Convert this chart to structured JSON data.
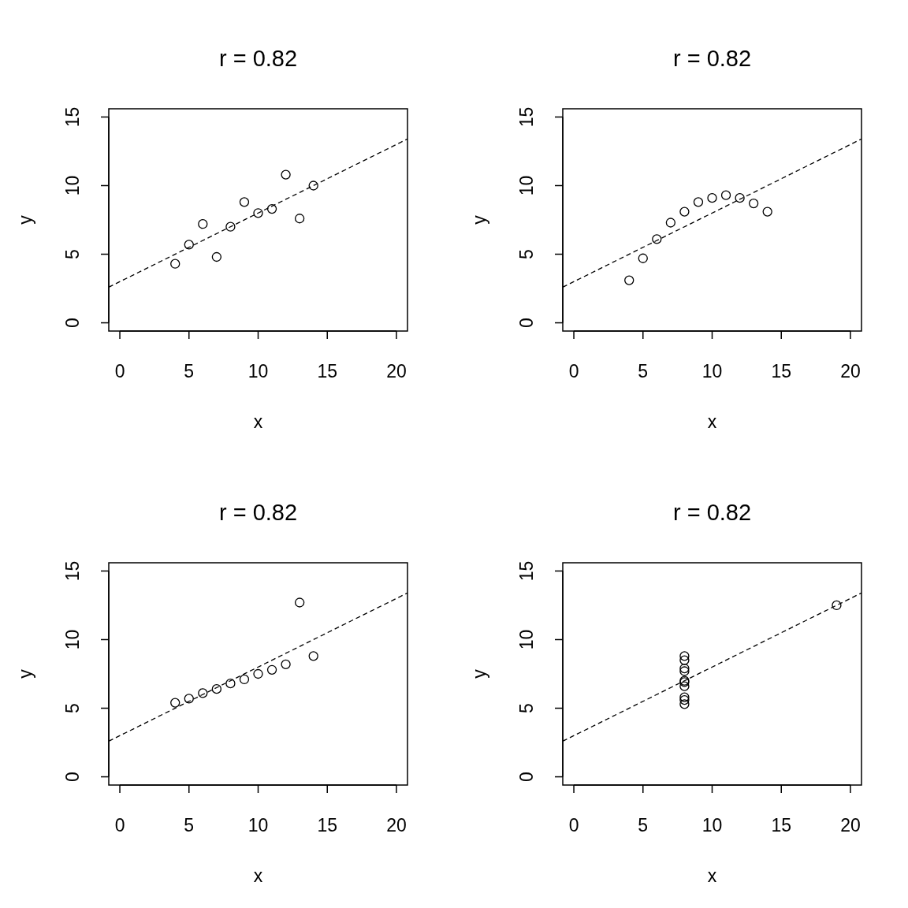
{
  "chart_data": [
    {
      "type": "scatter",
      "title": "r = 0.82",
      "xlabel": "x",
      "ylabel": "y",
      "xlim": [
        -0.8,
        20.8
      ],
      "ylim": [
        -0.6,
        15.6
      ],
      "xticks": [
        0,
        5,
        10,
        15,
        20
      ],
      "yticks": [
        0,
        5,
        10,
        15
      ],
      "series": [
        {
          "type": "scatter",
          "marker": "circle",
          "color": "#000000",
          "x": [
            10,
            8,
            13,
            9,
            11,
            14,
            6,
            4,
            12,
            7,
            5
          ],
          "values": [
            8.0,
            7.0,
            7.6,
            8.8,
            8.3,
            10.0,
            7.2,
            4.3,
            10.8,
            4.8,
            5.7
          ]
        },
        {
          "type": "line",
          "color": "#000000",
          "line_style": "dashed",
          "x": [
            -0.8,
            20.8
          ],
          "values": [
            2.6,
            13.4
          ]
        }
      ]
    },
    {
      "type": "scatter",
      "title": "r = 0.82",
      "xlabel": "x",
      "ylabel": "y",
      "xlim": [
        -0.8,
        20.8
      ],
      "ylim": [
        -0.6,
        15.6
      ],
      "xticks": [
        0,
        5,
        10,
        15,
        20
      ],
      "yticks": [
        0,
        5,
        10,
        15
      ],
      "series": [
        {
          "type": "scatter",
          "marker": "circle",
          "color": "#000000",
          "x": [
            10,
            8,
            13,
            9,
            11,
            14,
            6,
            4,
            12,
            7,
            5
          ],
          "values": [
            9.1,
            8.1,
            8.7,
            8.8,
            9.3,
            8.1,
            6.1,
            3.1,
            9.1,
            7.3,
            4.7
          ]
        },
        {
          "type": "line",
          "color": "#000000",
          "line_style": "dashed",
          "x": [
            -0.8,
            20.8
          ],
          "values": [
            2.6,
            13.4
          ]
        }
      ]
    },
    {
      "type": "scatter",
      "title": "r = 0.82",
      "xlabel": "x",
      "ylabel": "y",
      "xlim": [
        -0.8,
        20.8
      ],
      "ylim": [
        -0.6,
        15.6
      ],
      "xticks": [
        0,
        5,
        10,
        15,
        20
      ],
      "yticks": [
        0,
        5,
        10,
        15
      ],
      "series": [
        {
          "type": "scatter",
          "marker": "circle",
          "color": "#000000",
          "x": [
            10,
            8,
            13,
            9,
            11,
            14,
            6,
            4,
            12,
            7,
            5
          ],
          "values": [
            7.5,
            6.8,
            12.7,
            7.1,
            7.8,
            8.8,
            6.1,
            5.4,
            8.2,
            6.4,
            5.7
          ]
        },
        {
          "type": "line",
          "color": "#000000",
          "line_style": "dashed",
          "x": [
            -0.8,
            20.8
          ],
          "values": [
            2.6,
            13.4
          ]
        }
      ]
    },
    {
      "type": "scatter",
      "title": "r = 0.82",
      "xlabel": "x",
      "ylabel": "y",
      "xlim": [
        -0.8,
        20.8
      ],
      "ylim": [
        -0.6,
        15.6
      ],
      "xticks": [
        0,
        5,
        10,
        15,
        20
      ],
      "yticks": [
        0,
        5,
        10,
        15
      ],
      "series": [
        {
          "type": "scatter",
          "marker": "circle",
          "color": "#000000",
          "x": [
            8,
            8,
            8,
            8,
            8,
            8,
            8,
            19,
            8,
            8,
            8
          ],
          "values": [
            6.6,
            5.8,
            7.7,
            8.8,
            8.5,
            7.0,
            5.3,
            12.5,
            5.6,
            7.9,
            6.9
          ]
        },
        {
          "type": "line",
          "color": "#000000",
          "line_style": "dashed",
          "x": [
            -0.8,
            20.8
          ],
          "values": [
            2.6,
            13.4
          ]
        }
      ]
    }
  ]
}
